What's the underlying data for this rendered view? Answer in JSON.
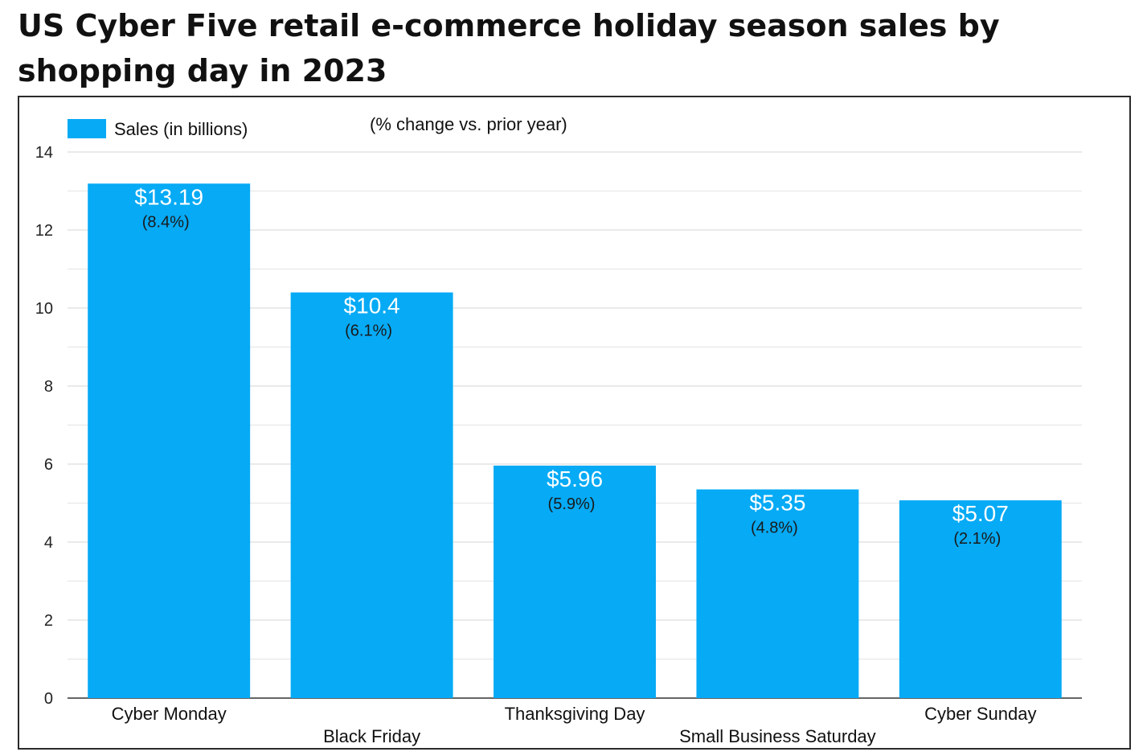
{
  "title_lines": [
    "US Cyber Five retail e-commerce holiday season sales by",
    "shopping day in 2023"
  ],
  "chart_data": {
    "type": "bar",
    "title": "US Cyber Five retail e-commerce holiday season sales by shopping day in 2023",
    "subtitle": "(% change vs. prior year)",
    "legend": {
      "label": "Sales (in billions)",
      "color": "#06aaf5",
      "position": "top-left"
    },
    "categories": [
      "Cyber Monday",
      "Black Friday",
      "Thanksgiving Day",
      "Small Business Saturday",
      "Cyber Sunday"
    ],
    "values": [
      13.19,
      10.4,
      5.96,
      5.35,
      5.07
    ],
    "value_labels": [
      "$13.19",
      "$10.4",
      "$5.96",
      "$5.35",
      "$5.07"
    ],
    "pct_change_labels": [
      "(8.4%)",
      "(6.1%)",
      "(5.9%)",
      "(4.8%)",
      "(2.1%)"
    ],
    "ylim": [
      0,
      14
    ],
    "yticks": [
      0,
      2,
      4,
      6,
      8,
      10,
      12,
      14
    ],
    "grid": true,
    "xlabel": "",
    "ylabel": "",
    "bar_color": "#06aaf5"
  }
}
